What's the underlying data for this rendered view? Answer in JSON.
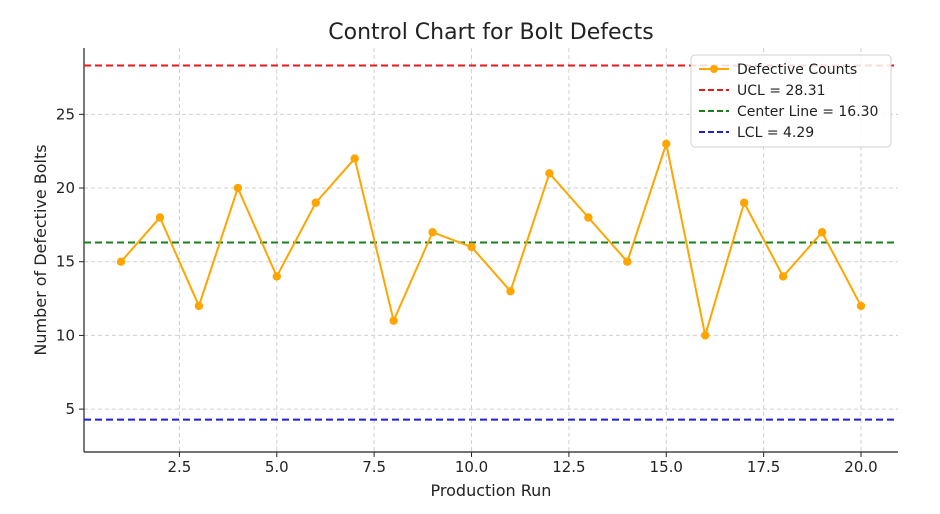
{
  "chart_data": {
    "type": "line",
    "title": "Control Chart for Bolt Defects",
    "xlabel": "Production Run",
    "ylabel": "Number of Defective Bolts",
    "xlim": [
      0.05,
      20.95
    ],
    "ylim": [
      2.09,
      29.5
    ],
    "x_ticks": [
      2.5,
      5.0,
      7.5,
      10.0,
      12.5,
      15.0,
      17.5,
      20.0
    ],
    "x_tick_labels": [
      "2.5",
      "5.0",
      "7.5",
      "10.0",
      "12.5",
      "15.0",
      "17.5",
      "20.0"
    ],
    "y_ticks": [
      5,
      10,
      15,
      20,
      25
    ],
    "y_tick_labels": [
      "5",
      "10",
      "15",
      "20",
      "25"
    ],
    "grid": true,
    "legend_position": "top-right",
    "series": [
      {
        "name": "Defective Counts",
        "color": "#FFA500",
        "x": [
          1,
          2,
          3,
          4,
          5,
          6,
          7,
          8,
          9,
          10,
          11,
          12,
          13,
          14,
          15,
          16,
          17,
          18,
          19,
          20
        ],
        "values": [
          15,
          18,
          12,
          20,
          14,
          19,
          22,
          11,
          17,
          16,
          13,
          21,
          18,
          15,
          23,
          10,
          19,
          14,
          17,
          12
        ]
      }
    ],
    "reference_lines": [
      {
        "name": "UCL = 28.31",
        "value": 28.31,
        "color": "#E41A1C",
        "style": "dashed"
      },
      {
        "name": "Center Line = 16.30",
        "value": 16.3,
        "color": "#1A7F1A",
        "style": "dashed"
      },
      {
        "name": "LCL = 4.29",
        "value": 4.29,
        "color": "#1F1FD6",
        "style": "dashed"
      }
    ]
  }
}
